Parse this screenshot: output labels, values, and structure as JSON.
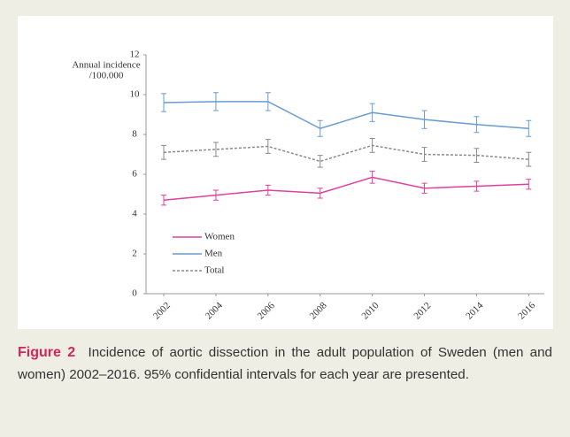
{
  "chart_data": {
    "type": "line",
    "y_label": [
      "Annual incidence",
      "/100.000"
    ],
    "x": [
      2002,
      2004,
      2006,
      2008,
      2010,
      2012,
      2014,
      2016
    ],
    "xlim": [
      2001.32,
      2016.6
    ],
    "xticks": [
      2002,
      2004,
      2006,
      2008,
      2010,
      2012,
      2014,
      2016
    ],
    "ylim": [
      0,
      12
    ],
    "yticks": [
      0,
      2,
      4,
      6,
      8,
      10,
      12
    ],
    "legend": "lower left",
    "series": [
      {
        "name": "Women",
        "color": "#e0409e",
        "dash": false,
        "values": [
          4.7,
          4.95,
          5.2,
          5.05,
          5.85,
          5.3,
          5.4,
          5.5
        ],
        "errors": [
          0.25,
          0.25,
          0.25,
          0.25,
          0.3,
          0.25,
          0.25,
          0.25
        ]
      },
      {
        "name": "Men",
        "color": "#6a9bd1",
        "dash": false,
        "values": [
          9.6,
          9.65,
          9.65,
          8.3,
          9.1,
          8.75,
          8.5,
          8.3
        ],
        "errors": [
          0.45,
          0.45,
          0.45,
          0.4,
          0.45,
          0.45,
          0.4,
          0.4
        ]
      },
      {
        "name": "Total",
        "color": "#8a8a8a",
        "dash": true,
        "values": [
          7.1,
          7.25,
          7.4,
          6.65,
          7.45,
          7.0,
          6.95,
          6.75
        ],
        "errors": [
          0.35,
          0.35,
          0.35,
          0.3,
          0.35,
          0.35,
          0.35,
          0.35
        ]
      }
    ]
  },
  "caption": {
    "label": "Figure 2",
    "text": "Incidence of aortic dissection in the adult population of Sweden (men and women) 2002–2016. 95% confidential intervals for each year are presented."
  }
}
